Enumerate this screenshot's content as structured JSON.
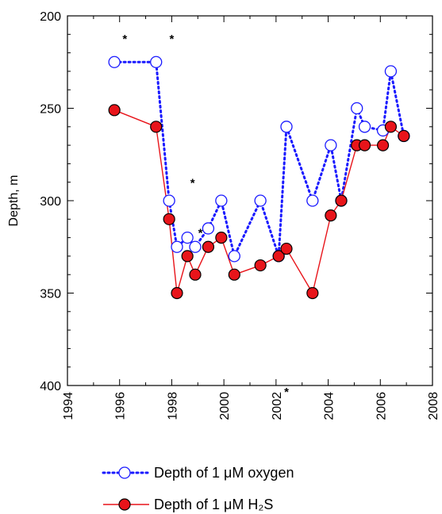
{
  "chart_data": {
    "type": "line",
    "title": "",
    "xlabel": "",
    "ylabel": "Depth, m",
    "xlim": [
      1994,
      2008
    ],
    "ylim": [
      200,
      400
    ],
    "y_inverted": true,
    "x_ticks": [
      1994,
      1996,
      1998,
      2000,
      2002,
      2004,
      2006,
      2008
    ],
    "y_ticks": [
      200,
      250,
      300,
      350,
      400
    ],
    "grid": false,
    "legend_position": "bottom",
    "series": [
      {
        "name": "Depth of 1 μM oxygen",
        "color": "#1a1aff",
        "line_style": "dotted",
        "marker": "open-circle",
        "x": [
          1995.8,
          1997.4,
          1997.9,
          1998.2,
          1998.6,
          1998.9,
          1999.4,
          1999.9,
          2000.4,
          2001.4,
          2002.1,
          2002.4,
          2003.4,
          2004.1,
          2004.5,
          2005.1,
          2005.4,
          2006.1,
          2006.4,
          2006.9
        ],
        "y": [
          225,
          225,
          300,
          325,
          320,
          325,
          315,
          300,
          330,
          300,
          330,
          260,
          300,
          270,
          300,
          250,
          260,
          262,
          230,
          265
        ]
      },
      {
        "name": "Depth of 1 μM H₂S",
        "color": "#e8141a",
        "line_style": "solid",
        "marker": "filled-circle",
        "x": [
          1995.8,
          1997.4,
          1997.9,
          1998.2,
          1998.6,
          1998.9,
          1999.4,
          1999.9,
          2000.4,
          2001.4,
          2002.1,
          2002.4,
          2003.4,
          2004.1,
          2004.5,
          2005.1,
          2005.4,
          2006.1,
          2006.4,
          2006.9
        ],
        "y": [
          251,
          260,
          310,
          350,
          330,
          340,
          325,
          320,
          340,
          335,
          330,
          326,
          350,
          308,
          300,
          270,
          270,
          270,
          260,
          265
        ]
      }
    ],
    "annotations": [
      {
        "text": "*",
        "x": 1996.2,
        "y": 212
      },
      {
        "text": "*",
        "x": 1998.0,
        "y": 212
      },
      {
        "text": "*",
        "x": 1998.8,
        "y": 290
      },
      {
        "text": "*",
        "x": 1999.1,
        "y": 317
      },
      {
        "text": "*",
        "x": 2002.4,
        "y": 403
      }
    ]
  }
}
